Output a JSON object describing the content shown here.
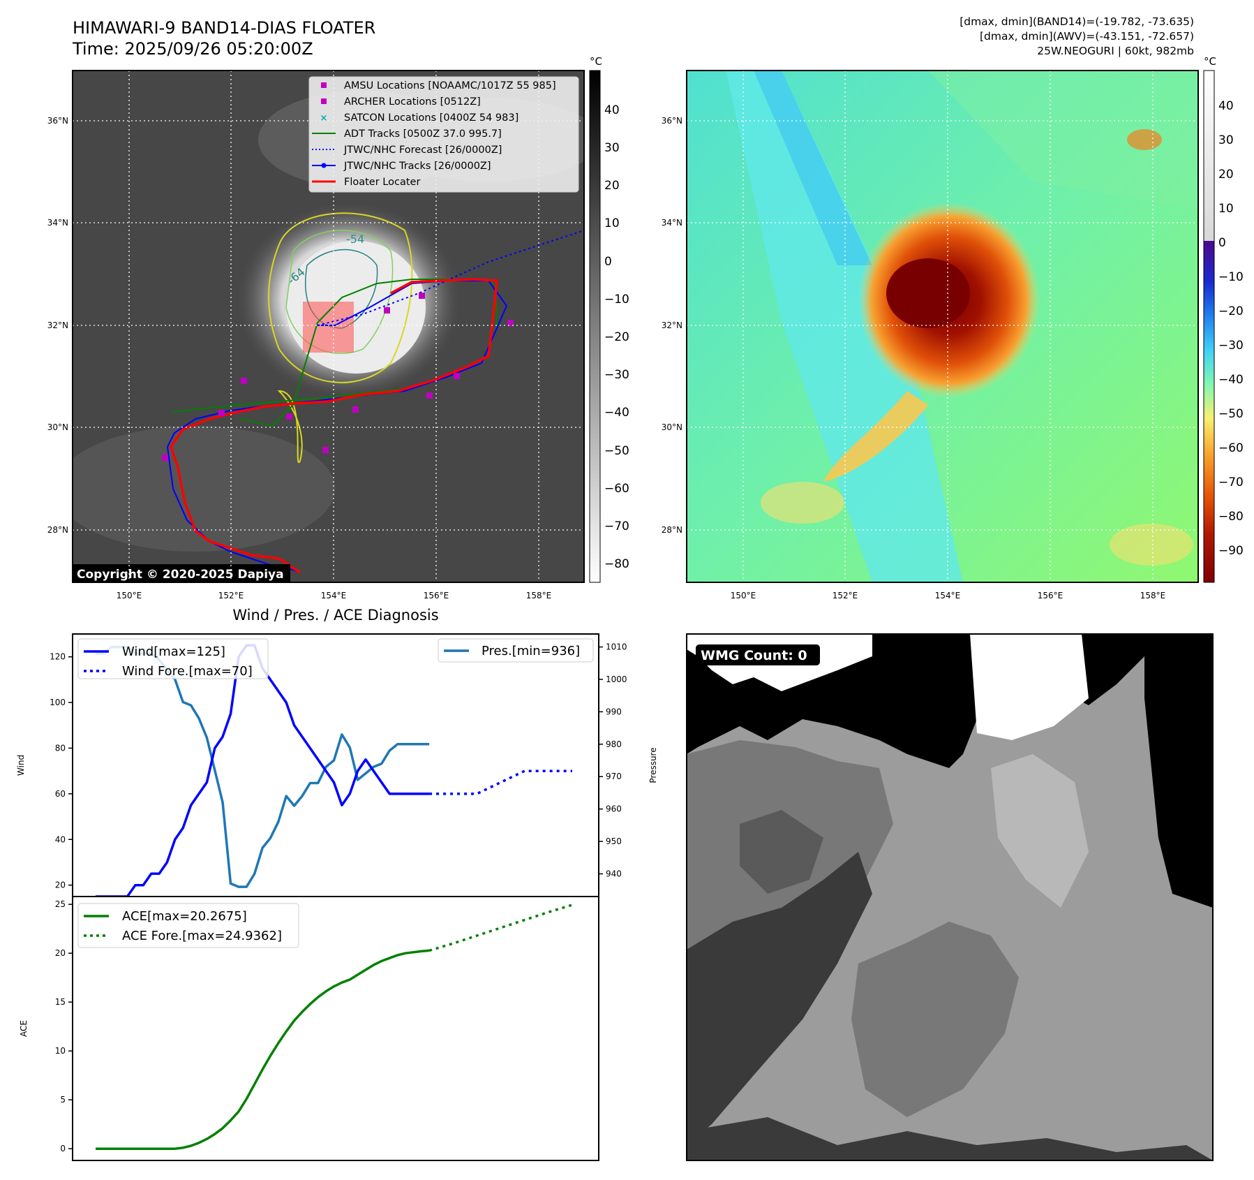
{
  "header": {
    "title_line1": "HIMAWARI-9 BAND14-DIAS FLOATER",
    "title_line2": "Time: 2025/09/26 05:20:00Z",
    "info_line1": "[dmax, dmin](BAND14)=(-19.782, -73.635)",
    "info_line2": "[dmax, dmin](AWV)=(-43.151, -72.657)",
    "info_line3": "25W.NEOGURI | 60kt, 982mb"
  },
  "colors": {
    "wind": "#0000ff",
    "pressure": "#1f77b4",
    "ace": "#008000",
    "track_red": "#ff0000",
    "adt_green": "#008000",
    "amsu_magenta": "#c000c0",
    "satcon_cyan": "#00b0b0"
  },
  "ir_map": {
    "lon_ticks": [
      "150°E",
      "152°E",
      "154°E",
      "156°E",
      "158°E"
    ],
    "lat_ticks": [
      "28°N",
      "30°N",
      "32°N",
      "34°N",
      "36°N"
    ],
    "legend": [
      "AMSU Locations [NOAAMC/1017Z 55 985]",
      "ARCHER Locations [0512Z]",
      "SATCON Locations [0400Z 54 983]",
      "ADT Tracks [0500Z 37.0 995.7]",
      "JTWC/NHC Forecast [26/0000Z]",
      "JTWC/NHC Tracks [26/0000Z]",
      "Floater Locater"
    ],
    "copyright": "Copyright © 2020-2025 Dapiya",
    "contour_labels": [
      "-54",
      "-64"
    ],
    "colorbar_unit": "°C",
    "colorbar_ticks": [
      "40",
      "30",
      "20",
      "10",
      "0",
      "−10",
      "−20",
      "−30",
      "−40",
      "−50",
      "−60",
      "−70",
      "−80"
    ]
  },
  "wv_map": {
    "lon_ticks": [
      "150°E",
      "152°E",
      "154°E",
      "156°E",
      "158°E"
    ],
    "lat_ticks": [
      "28°N",
      "30°N",
      "32°N",
      "34°N",
      "36°N"
    ],
    "colorbar_unit": "°C",
    "colorbar_ticks": [
      "40",
      "30",
      "20",
      "10",
      "0",
      "−10",
      "−20",
      "−30",
      "−40",
      "−50",
      "−60",
      "−70",
      "−80",
      "−90"
    ]
  },
  "wmg": {
    "label": "WMG Count: 0"
  },
  "chart_data": [
    {
      "type": "line",
      "title": "Wind / Pres. / ACE Diagnosis",
      "ylabel": "Wind",
      "ylabel_right": "Pressure",
      "y_ticks": [
        "20",
        "40",
        "60",
        "80",
        "100",
        "120"
      ],
      "y2_ticks": [
        "940",
        "950",
        "960",
        "970",
        "980",
        "990",
        "1000",
        "1010"
      ],
      "ylim": [
        15,
        130
      ],
      "y2lim": [
        933,
        1014
      ],
      "series": [
        {
          "name": "Wind[max=125]",
          "x": [
            0,
            1,
            2,
            3,
            4,
            5,
            6,
            7,
            8,
            9,
            10,
            11,
            12,
            13,
            14,
            15,
            16,
            17,
            18,
            19,
            20,
            21,
            22,
            23,
            24,
            25,
            26,
            27,
            28,
            29,
            30,
            31,
            32,
            33,
            34,
            35,
            36,
            37,
            38,
            39,
            40,
            41,
            42
          ],
          "values": [
            15,
            15,
            15,
            15,
            15,
            20,
            20,
            25,
            25,
            30,
            40,
            45,
            55,
            60,
            65,
            80,
            85,
            95,
            120,
            125,
            125,
            115,
            110,
            105,
            100,
            90,
            85,
            80,
            75,
            70,
            65,
            55,
            60,
            70,
            75,
            70,
            65,
            60,
            60,
            60,
            60,
            60,
            60
          ]
        },
        {
          "name": "Wind Fore.[max=70]",
          "x": [
            42,
            45,
            48,
            51,
            54,
            57,
            60
          ],
          "values": [
            60,
            60,
            60,
            65,
            70,
            70,
            70
          ]
        },
        {
          "name": "Pres.[min=936]",
          "x": [
            0,
            1,
            2,
            3,
            4,
            5,
            6,
            7,
            8,
            9,
            10,
            11,
            12,
            13,
            14,
            15,
            16,
            17,
            18,
            19,
            20,
            21,
            22,
            23,
            24,
            25,
            26,
            27,
            28,
            29,
            30,
            31,
            32,
            33,
            34,
            35,
            36,
            37,
            38,
            39,
            40,
            41,
            42
          ],
          "values": [
            1008,
            1008,
            1010,
            1010,
            1010,
            1008,
            1008,
            1008,
            1006,
            1003,
            1000,
            993,
            992,
            988,
            982,
            972,
            962,
            937,
            936,
            936,
            940,
            948,
            951,
            956,
            964,
            961,
            964,
            968,
            968,
            973,
            975,
            983,
            979,
            969,
            971,
            973,
            974,
            978,
            980,
            980,
            980,
            980,
            980
          ]
        }
      ]
    },
    {
      "type": "line",
      "ylabel": "ACE",
      "y_ticks": [
        "0",
        "5",
        "10",
        "15",
        "20",
        "25"
      ],
      "ylim": [
        -1.2,
        25.8
      ],
      "series": [
        {
          "name": "ACE[max=20.2675]",
          "x": [
            0,
            2,
            4,
            6,
            8,
            10,
            11,
            12,
            13,
            14,
            15,
            16,
            17,
            18,
            19,
            20,
            21,
            22,
            23,
            24,
            25,
            26,
            27,
            28,
            29,
            30,
            31,
            32,
            33,
            34,
            35,
            36,
            37,
            38,
            39,
            40,
            41,
            42
          ],
          "values": [
            0,
            0,
            0,
            0,
            0,
            0,
            0.1,
            0.3,
            0.6,
            1.0,
            1.5,
            2.1,
            2.9,
            3.8,
            5.1,
            6.6,
            8.1,
            9.5,
            10.8,
            12.0,
            13.1,
            14.0,
            14.8,
            15.5,
            16.1,
            16.6,
            17.0,
            17.3,
            17.8,
            18.3,
            18.8,
            19.2,
            19.5,
            19.8,
            20.0,
            20.1,
            20.2,
            20.27
          ]
        },
        {
          "name": "ACE Fore.[max=24.9362]",
          "x": [
            42,
            45,
            48,
            51,
            54,
            57,
            60
          ],
          "values": [
            20.27,
            21.0,
            21.8,
            22.6,
            23.4,
            24.2,
            24.94
          ]
        }
      ]
    }
  ]
}
